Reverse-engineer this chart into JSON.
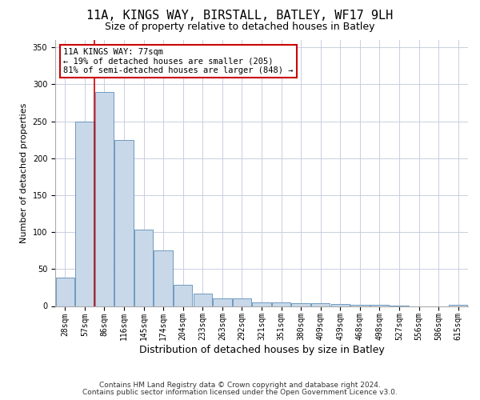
{
  "title_line1": "11A, KINGS WAY, BIRSTALL, BATLEY, WF17 9LH",
  "title_line2": "Size of property relative to detached houses in Batley",
  "xlabel": "Distribution of detached houses by size in Batley",
  "ylabel": "Number of detached properties",
  "categories": [
    "28sqm",
    "57sqm",
    "86sqm",
    "116sqm",
    "145sqm",
    "174sqm",
    "204sqm",
    "233sqm",
    "263sqm",
    "292sqm",
    "321sqm",
    "351sqm",
    "380sqm",
    "409sqm",
    "439sqm",
    "468sqm",
    "498sqm",
    "527sqm",
    "556sqm",
    "586sqm",
    "615sqm"
  ],
  "values": [
    38,
    250,
    290,
    225,
    103,
    75,
    29,
    17,
    10,
    10,
    5,
    5,
    4,
    4,
    3,
    2,
    2,
    1,
    0,
    0,
    2
  ],
  "bar_color": "#c8d8e8",
  "bar_edge_color": "#5b8db8",
  "vline_x_index": 1.5,
  "vline_color": "#cc0000",
  "annotation_text": "11A KINGS WAY: 77sqm\n← 19% of detached houses are smaller (205)\n81% of semi-detached houses are larger (848) →",
  "annotation_box_color": "#ffffff",
  "annotation_box_edge_color": "#cc0000",
  "ylim": [
    0,
    360
  ],
  "yticks": [
    0,
    50,
    100,
    150,
    200,
    250,
    300,
    350
  ],
  "grid_color": "#c8d0e0",
  "background_color": "#ffffff",
  "footer_line1": "Contains HM Land Registry data © Crown copyright and database right 2024.",
  "footer_line2": "Contains public sector information licensed under the Open Government Licence v3.0.",
  "title_fontsize": 11,
  "subtitle_fontsize": 9,
  "xlabel_fontsize": 9,
  "ylabel_fontsize": 8,
  "tick_fontsize": 7,
  "annot_fontsize": 7.5,
  "footer_fontsize": 6.5
}
